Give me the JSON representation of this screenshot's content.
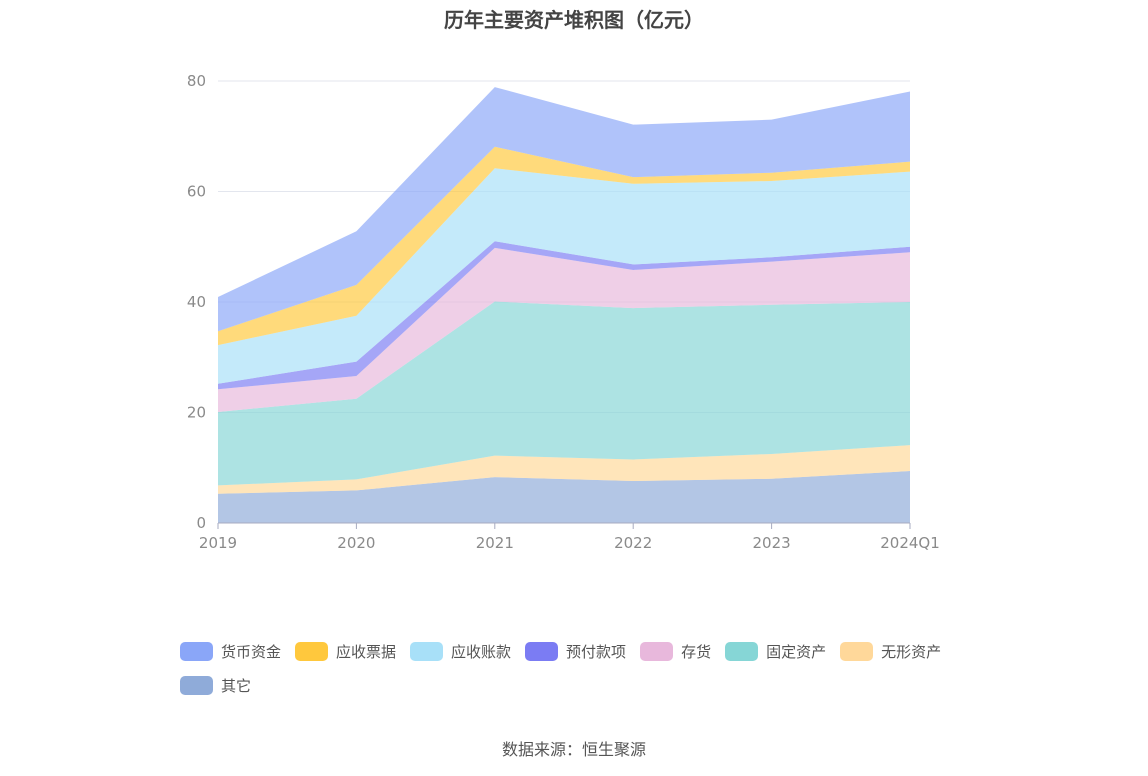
{
  "chart_data": {
    "type": "area",
    "stacked": true,
    "title": "历年主要资产堆积图（亿元）",
    "categories": [
      "2019",
      "2020",
      "2021",
      "2022",
      "2023",
      "2024Q1"
    ],
    "ylim": [
      0,
      80
    ],
    "yticks": [
      0,
      20,
      40,
      60,
      80
    ],
    "grid": true,
    "legend_position": "bottom",
    "series": [
      {
        "name": "其它",
        "color": "#8fabd9",
        "values": [
          5.3,
          5.9,
          8.3,
          7.6,
          8.0,
          9.4
        ]
      },
      {
        "name": "无形资产",
        "color": "#ffd89a",
        "values": [
          1.5,
          2.0,
          3.9,
          3.9,
          4.5,
          4.7
        ]
      },
      {
        "name": "固定资产",
        "color": "#86d6d6",
        "values": [
          13.3,
          14.6,
          27.9,
          27.4,
          27.0,
          25.9
        ]
      },
      {
        "name": "存货",
        "color": "#e8b8dc",
        "values": [
          4.1,
          4.1,
          9.7,
          6.9,
          7.8,
          9.0
        ]
      },
      {
        "name": "预付款项",
        "color": "#7b7cf3",
        "values": [
          1.0,
          2.6,
          1.2,
          1.0,
          0.8,
          1.0
        ]
      },
      {
        "name": "应收账款",
        "color": "#a8e0f8",
        "values": [
          7.0,
          8.3,
          13.2,
          14.6,
          13.8,
          13.6
        ]
      },
      {
        "name": "应收票据",
        "color": "#ffc83d",
        "values": [
          2.5,
          5.6,
          3.9,
          1.2,
          1.5,
          1.8
        ]
      },
      {
        "name": "货币资金",
        "color": "#8aa6f8",
        "values": [
          6.2,
          9.7,
          10.8,
          9.5,
          9.6,
          12.7
        ]
      }
    ]
  },
  "legend": [
    {
      "name": "货币资金",
      "color": "#8aa6f8"
    },
    {
      "name": "应收票据",
      "color": "#ffc83d"
    },
    {
      "name": "应收账款",
      "color": "#a8e0f8"
    },
    {
      "name": "预付款项",
      "color": "#7b7cf3"
    },
    {
      "name": "存货",
      "color": "#e8b8dc"
    },
    {
      "name": "固定资产",
      "color": "#86d6d6"
    },
    {
      "name": "无形资产",
      "color": "#ffd89a"
    },
    {
      "name": "其它",
      "color": "#8fabd9"
    }
  ],
  "source": "数据来源：恒生聚源"
}
